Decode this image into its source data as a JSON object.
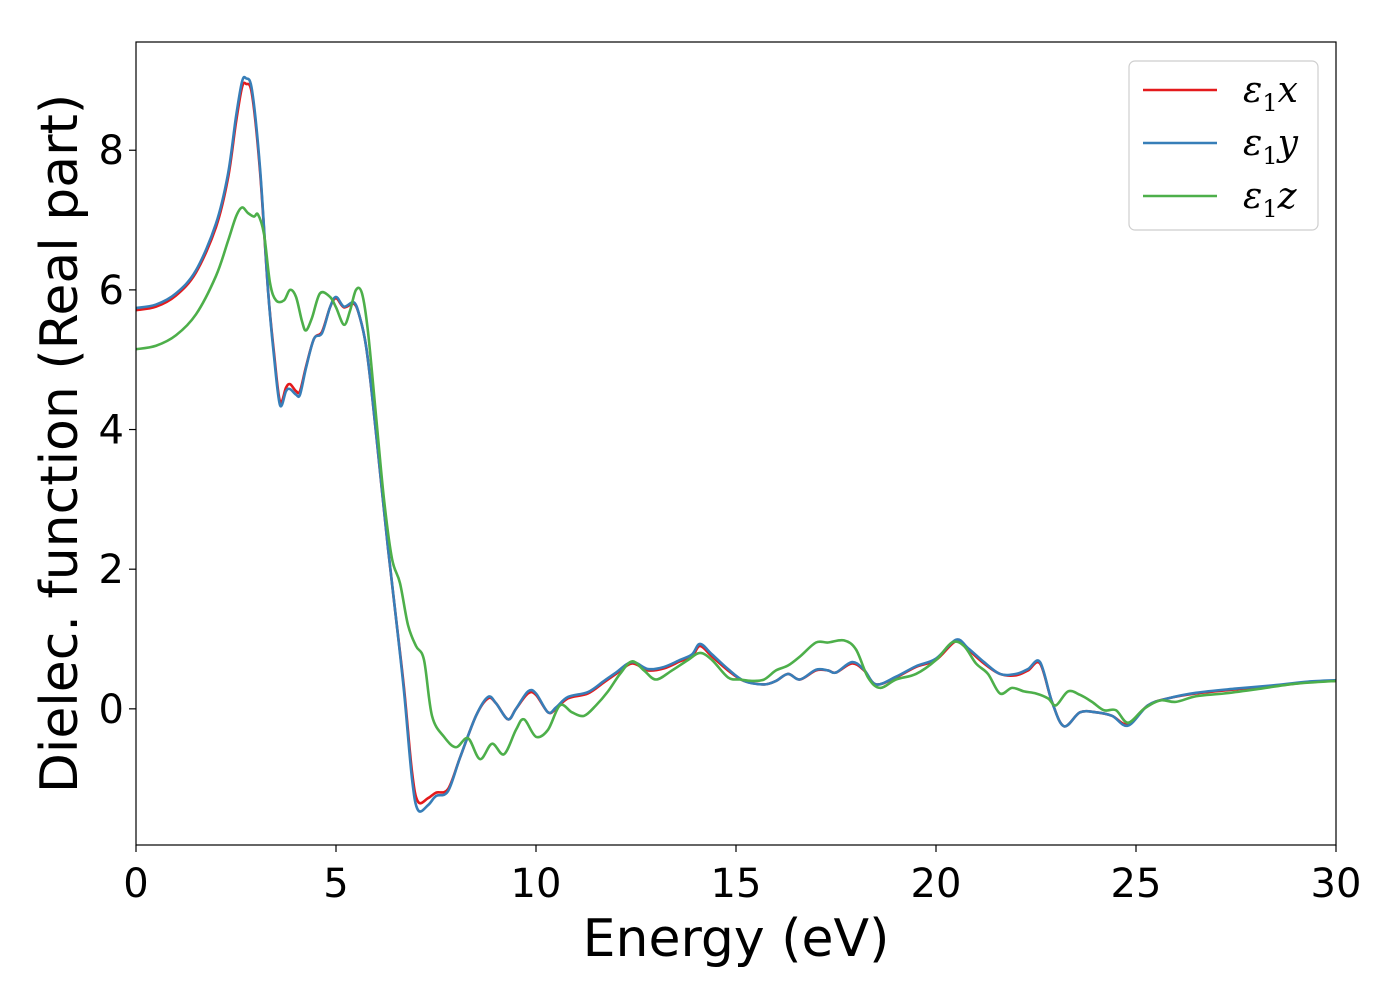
{
  "chart_data": {
    "type": "line",
    "xlabel": "Energy (eV)",
    "ylabel": "Dielec. function (Real part)",
    "xlim": [
      0,
      30
    ],
    "ylim": [
      -1.95,
      9.55
    ],
    "x_ticks": [
      0,
      5,
      10,
      15,
      20,
      25,
      30
    ],
    "y_ticks": [
      0,
      2,
      4,
      6,
      8
    ],
    "grid": false,
    "legend_position": "top-right",
    "series": [
      {
        "name": "ε1x",
        "legend": {
          "base": "ε",
          "sub": "1",
          "suffix": "x"
        },
        "color": "#e41a1c",
        "points": [
          [
            0,
            5.71
          ],
          [
            0.5,
            5.76
          ],
          [
            1.0,
            5.92
          ],
          [
            1.5,
            6.25
          ],
          [
            2.0,
            6.9
          ],
          [
            2.3,
            7.6
          ],
          [
            2.5,
            8.4
          ],
          [
            2.65,
            8.9
          ],
          [
            2.75,
            8.95
          ],
          [
            2.9,
            8.8
          ],
          [
            3.1,
            7.7
          ],
          [
            3.3,
            6.0
          ],
          [
            3.45,
            5.1
          ],
          [
            3.6,
            4.4
          ],
          [
            3.75,
            4.6
          ],
          [
            3.85,
            4.65
          ],
          [
            4.0,
            4.55
          ],
          [
            4.1,
            4.55
          ],
          [
            4.25,
            4.9
          ],
          [
            4.45,
            5.3
          ],
          [
            4.65,
            5.4
          ],
          [
            4.85,
            5.75
          ],
          [
            5.0,
            5.88
          ],
          [
            5.2,
            5.75
          ],
          [
            5.45,
            5.8
          ],
          [
            5.6,
            5.6
          ],
          [
            5.75,
            5.2
          ],
          [
            5.9,
            4.5
          ],
          [
            6.1,
            3.4
          ],
          [
            6.3,
            2.3
          ],
          [
            6.5,
            1.3
          ],
          [
            6.7,
            0.3
          ],
          [
            6.9,
            -0.9
          ],
          [
            7.05,
            -1.33
          ],
          [
            7.3,
            -1.28
          ],
          [
            7.5,
            -1.2
          ],
          [
            7.8,
            -1.15
          ],
          [
            8.1,
            -0.7
          ],
          [
            8.5,
            -0.1
          ],
          [
            8.8,
            0.15
          ],
          [
            9.0,
            0.08
          ],
          [
            9.3,
            -0.15
          ],
          [
            9.5,
            0.0
          ],
          [
            9.8,
            0.22
          ],
          [
            10.0,
            0.2
          ],
          [
            10.3,
            -0.05
          ],
          [
            10.5,
            0.0
          ],
          [
            10.8,
            0.15
          ],
          [
            11.3,
            0.22
          ],
          [
            11.7,
            0.38
          ],
          [
            12.0,
            0.5
          ],
          [
            12.4,
            0.65
          ],
          [
            12.8,
            0.55
          ],
          [
            13.2,
            0.58
          ],
          [
            13.6,
            0.68
          ],
          [
            13.9,
            0.75
          ],
          [
            14.1,
            0.9
          ],
          [
            14.4,
            0.75
          ],
          [
            14.8,
            0.55
          ],
          [
            15.2,
            0.4
          ],
          [
            15.7,
            0.35
          ],
          [
            16.0,
            0.4
          ],
          [
            16.3,
            0.5
          ],
          [
            16.6,
            0.42
          ],
          [
            17.0,
            0.55
          ],
          [
            17.3,
            0.55
          ],
          [
            17.5,
            0.52
          ],
          [
            17.9,
            0.65
          ],
          [
            18.2,
            0.55
          ],
          [
            18.5,
            0.35
          ],
          [
            19.0,
            0.45
          ],
          [
            19.5,
            0.6
          ],
          [
            20.0,
            0.7
          ],
          [
            20.5,
            0.97
          ],
          [
            20.8,
            0.85
          ],
          [
            21.2,
            0.65
          ],
          [
            21.6,
            0.5
          ],
          [
            22.0,
            0.48
          ],
          [
            22.3,
            0.55
          ],
          [
            22.6,
            0.65
          ],
          [
            22.9,
            0.1
          ],
          [
            23.2,
            -0.25
          ],
          [
            23.6,
            -0.05
          ],
          [
            24.0,
            -0.05
          ],
          [
            24.4,
            -0.1
          ],
          [
            24.8,
            -0.22
          ],
          [
            25.3,
            0.05
          ],
          [
            25.8,
            0.15
          ],
          [
            26.5,
            0.22
          ],
          [
            27.5,
            0.28
          ],
          [
            28.5,
            0.33
          ],
          [
            29.3,
            0.38
          ],
          [
            30.0,
            0.4
          ]
        ]
      },
      {
        "name": "ε1y",
        "legend": {
          "base": "ε",
          "sub": "1",
          "suffix": "y"
        },
        "color": "#377eb8",
        "points": [
          [
            0,
            5.74
          ],
          [
            0.5,
            5.79
          ],
          [
            1.0,
            5.95
          ],
          [
            1.5,
            6.28
          ],
          [
            2.0,
            6.95
          ],
          [
            2.3,
            7.66
          ],
          [
            2.5,
            8.48
          ],
          [
            2.65,
            8.98
          ],
          [
            2.75,
            9.03
          ],
          [
            2.9,
            8.86
          ],
          [
            3.1,
            7.75
          ],
          [
            3.3,
            6.0
          ],
          [
            3.45,
            5.05
          ],
          [
            3.6,
            4.35
          ],
          [
            3.75,
            4.55
          ],
          [
            3.85,
            4.58
          ],
          [
            4.0,
            4.5
          ],
          [
            4.1,
            4.5
          ],
          [
            4.25,
            4.88
          ],
          [
            4.45,
            5.3
          ],
          [
            4.65,
            5.38
          ],
          [
            4.85,
            5.75
          ],
          [
            5.0,
            5.9
          ],
          [
            5.2,
            5.76
          ],
          [
            5.45,
            5.82
          ],
          [
            5.6,
            5.6
          ],
          [
            5.75,
            5.2
          ],
          [
            5.9,
            4.5
          ],
          [
            6.1,
            3.4
          ],
          [
            6.3,
            2.3
          ],
          [
            6.5,
            1.3
          ],
          [
            6.7,
            0.25
          ],
          [
            6.9,
            -1.0
          ],
          [
            7.05,
            -1.45
          ],
          [
            7.3,
            -1.38
          ],
          [
            7.5,
            -1.25
          ],
          [
            7.8,
            -1.18
          ],
          [
            8.1,
            -0.7
          ],
          [
            8.5,
            -0.1
          ],
          [
            8.8,
            0.17
          ],
          [
            9.0,
            0.08
          ],
          [
            9.3,
            -0.15
          ],
          [
            9.5,
            0.0
          ],
          [
            9.8,
            0.25
          ],
          [
            10.0,
            0.22
          ],
          [
            10.3,
            -0.05
          ],
          [
            10.5,
            0.02
          ],
          [
            10.8,
            0.17
          ],
          [
            11.3,
            0.24
          ],
          [
            11.7,
            0.4
          ],
          [
            12.0,
            0.52
          ],
          [
            12.4,
            0.67
          ],
          [
            12.8,
            0.57
          ],
          [
            13.2,
            0.6
          ],
          [
            13.6,
            0.7
          ],
          [
            13.9,
            0.78
          ],
          [
            14.1,
            0.93
          ],
          [
            14.4,
            0.78
          ],
          [
            14.8,
            0.57
          ],
          [
            15.2,
            0.4
          ],
          [
            15.7,
            0.35
          ],
          [
            16.0,
            0.4
          ],
          [
            16.3,
            0.5
          ],
          [
            16.6,
            0.42
          ],
          [
            17.0,
            0.56
          ],
          [
            17.3,
            0.55
          ],
          [
            17.5,
            0.52
          ],
          [
            17.9,
            0.67
          ],
          [
            18.2,
            0.56
          ],
          [
            18.5,
            0.35
          ],
          [
            19.0,
            0.46
          ],
          [
            19.5,
            0.61
          ],
          [
            20.0,
            0.72
          ],
          [
            20.5,
            0.99
          ],
          [
            20.8,
            0.87
          ],
          [
            21.2,
            0.67
          ],
          [
            21.6,
            0.5
          ],
          [
            22.0,
            0.5
          ],
          [
            22.3,
            0.57
          ],
          [
            22.6,
            0.67
          ],
          [
            22.9,
            0.1
          ],
          [
            23.2,
            -0.25
          ],
          [
            23.6,
            -0.05
          ],
          [
            24.0,
            -0.05
          ],
          [
            24.4,
            -0.1
          ],
          [
            24.8,
            -0.24
          ],
          [
            25.3,
            0.05
          ],
          [
            25.8,
            0.15
          ],
          [
            26.5,
            0.23
          ],
          [
            27.5,
            0.29
          ],
          [
            28.5,
            0.34
          ],
          [
            29.3,
            0.39
          ],
          [
            30.0,
            0.41
          ]
        ]
      },
      {
        "name": "ε1z",
        "legend": {
          "base": "ε",
          "sub": "1",
          "suffix": "z"
        },
        "color": "#4daf4a",
        "points": [
          [
            0,
            5.15
          ],
          [
            0.5,
            5.2
          ],
          [
            1.0,
            5.35
          ],
          [
            1.5,
            5.65
          ],
          [
            2.0,
            6.2
          ],
          [
            2.3,
            6.7
          ],
          [
            2.5,
            7.05
          ],
          [
            2.65,
            7.18
          ],
          [
            2.8,
            7.1
          ],
          [
            2.95,
            7.05
          ],
          [
            3.05,
            7.08
          ],
          [
            3.2,
            6.8
          ],
          [
            3.35,
            6.1
          ],
          [
            3.5,
            5.85
          ],
          [
            3.7,
            5.85
          ],
          [
            3.85,
            6.0
          ],
          [
            4.0,
            5.9
          ],
          [
            4.15,
            5.55
          ],
          [
            4.25,
            5.42
          ],
          [
            4.4,
            5.6
          ],
          [
            4.6,
            5.95
          ],
          [
            4.85,
            5.9
          ],
          [
            5.0,
            5.75
          ],
          [
            5.2,
            5.5
          ],
          [
            5.35,
            5.7
          ],
          [
            5.5,
            6.0
          ],
          [
            5.65,
            5.95
          ],
          [
            5.8,
            5.4
          ],
          [
            6.0,
            4.2
          ],
          [
            6.2,
            3.0
          ],
          [
            6.4,
            2.15
          ],
          [
            6.6,
            1.8
          ],
          [
            6.8,
            1.2
          ],
          [
            7.0,
            0.9
          ],
          [
            7.2,
            0.7
          ],
          [
            7.4,
            -0.1
          ],
          [
            7.7,
            -0.4
          ],
          [
            8.0,
            -0.55
          ],
          [
            8.3,
            -0.42
          ],
          [
            8.6,
            -0.72
          ],
          [
            8.9,
            -0.5
          ],
          [
            9.2,
            -0.65
          ],
          [
            9.5,
            -0.3
          ],
          [
            9.7,
            -0.15
          ],
          [
            10.0,
            -0.4
          ],
          [
            10.3,
            -0.3
          ],
          [
            10.6,
            0.05
          ],
          [
            10.9,
            -0.05
          ],
          [
            11.2,
            -0.1
          ],
          [
            11.5,
            0.05
          ],
          [
            11.8,
            0.25
          ],
          [
            12.1,
            0.5
          ],
          [
            12.4,
            0.68
          ],
          [
            12.7,
            0.55
          ],
          [
            13.0,
            0.42
          ],
          [
            13.4,
            0.55
          ],
          [
            13.8,
            0.7
          ],
          [
            14.1,
            0.8
          ],
          [
            14.4,
            0.7
          ],
          [
            14.8,
            0.45
          ],
          [
            15.1,
            0.42
          ],
          [
            15.4,
            0.4
          ],
          [
            15.7,
            0.42
          ],
          [
            16.0,
            0.55
          ],
          [
            16.3,
            0.62
          ],
          [
            16.6,
            0.75
          ],
          [
            17.0,
            0.95
          ],
          [
            17.3,
            0.95
          ],
          [
            17.7,
            0.98
          ],
          [
            18.0,
            0.85
          ],
          [
            18.3,
            0.45
          ],
          [
            18.6,
            0.3
          ],
          [
            19.0,
            0.42
          ],
          [
            19.5,
            0.5
          ],
          [
            20.0,
            0.7
          ],
          [
            20.4,
            0.95
          ],
          [
            20.7,
            0.9
          ],
          [
            21.0,
            0.65
          ],
          [
            21.3,
            0.5
          ],
          [
            21.6,
            0.22
          ],
          [
            21.9,
            0.3
          ],
          [
            22.2,
            0.25
          ],
          [
            22.5,
            0.22
          ],
          [
            22.8,
            0.15
          ],
          [
            23.0,
            0.05
          ],
          [
            23.3,
            0.25
          ],
          [
            23.6,
            0.2
          ],
          [
            23.9,
            0.1
          ],
          [
            24.2,
            -0.02
          ],
          [
            24.5,
            -0.02
          ],
          [
            24.8,
            -0.2
          ],
          [
            25.2,
            0.0
          ],
          [
            25.6,
            0.12
          ],
          [
            26.0,
            0.1
          ],
          [
            26.5,
            0.18
          ],
          [
            27.2,
            0.22
          ],
          [
            28.0,
            0.28
          ],
          [
            29.0,
            0.36
          ],
          [
            30.0,
            0.4
          ]
        ]
      }
    ]
  }
}
